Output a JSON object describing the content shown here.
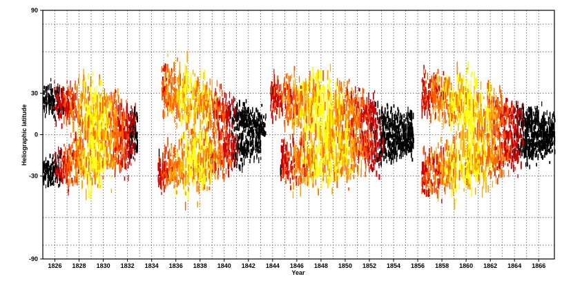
{
  "chart_data": {
    "type": "heatmap",
    "title": "",
    "xlabel": "Year",
    "ylabel": "Heliographic latitude",
    "xlim": [
      1825.0,
      1867.3
    ],
    "ylim": [
      -90,
      90
    ],
    "x_ticks": [
      1826,
      1828,
      1830,
      1832,
      1834,
      1836,
      1838,
      1840,
      1842,
      1844,
      1846,
      1848,
      1850,
      1852,
      1854,
      1856,
      1858,
      1860,
      1862,
      1864,
      1866
    ],
    "x_tick_labels": [
      "1826",
      "1828",
      "1830",
      "1832",
      "1834",
      "1836",
      "1838",
      "1840",
      "1842",
      "1844",
      "1846",
      "1848",
      "1850",
      "1852",
      "1854",
      "1856",
      "1858",
      "1860",
      "1862",
      "1864",
      "1866"
    ],
    "y_ticks": [
      -90,
      -30,
      0,
      30,
      90
    ],
    "y_tick_labels": [
      "-90",
      "-30",
      "0",
      "30",
      "90"
    ],
    "x_grid": [
      1826,
      1827,
      1828,
      1829,
      1830,
      1831,
      1832,
      1833,
      1834,
      1835,
      1836,
      1837,
      1838,
      1839,
      1840,
      1841,
      1842,
      1843,
      1844,
      1845,
      1846,
      1847,
      1848,
      1849,
      1850,
      1851,
      1852,
      1853,
      1854,
      1855,
      1856,
      1857,
      1858,
      1859,
      1860,
      1861,
      1862,
      1863,
      1864,
      1865,
      1866
    ],
    "y_grid": [
      -80,
      -60,
      -30,
      0,
      30,
      60,
      80
    ],
    "colormap": [
      "#000000",
      "#cc0000",
      "#ff5a00",
      "#ffa500",
      "#ffff00"
    ],
    "grid": true,
    "legend": "none",
    "wings": [
      {
        "t0": 1825.0,
        "t1": 1832.8,
        "lat_start": 27,
        "lat_end": 6,
        "hem": 1,
        "peak": 1829.3
      },
      {
        "t0": 1825.0,
        "t1": 1832.8,
        "lat_start": 27,
        "lat_end": 8,
        "hem": -1,
        "peak": 1829.3
      },
      {
        "t0": 1834.8,
        "t1": 1843.4,
        "lat_start": 33,
        "lat_end": 5,
        "hem": 1,
        "peak": 1837.2
      },
      {
        "t0": 1834.5,
        "t1": 1843.0,
        "lat_start": 27,
        "lat_end": 6,
        "hem": -1,
        "peak": 1837.5
      },
      {
        "t0": 1843.8,
        "t1": 1855.6,
        "lat_start": 28,
        "lat_end": 6,
        "hem": 1,
        "peak": 1848.0
      },
      {
        "t0": 1844.6,
        "t1": 1855.6,
        "lat_start": 22,
        "lat_end": 6,
        "hem": -1,
        "peak": 1848.5
      },
      {
        "t0": 1856.3,
        "t1": 1867.3,
        "lat_start": 30,
        "lat_end": 4,
        "hem": 1,
        "peak": 1860.0
      },
      {
        "t0": 1856.3,
        "t1": 1867.3,
        "lat_start": 28,
        "lat_end": 4,
        "hem": -1,
        "peak": 1860.0
      }
    ]
  }
}
